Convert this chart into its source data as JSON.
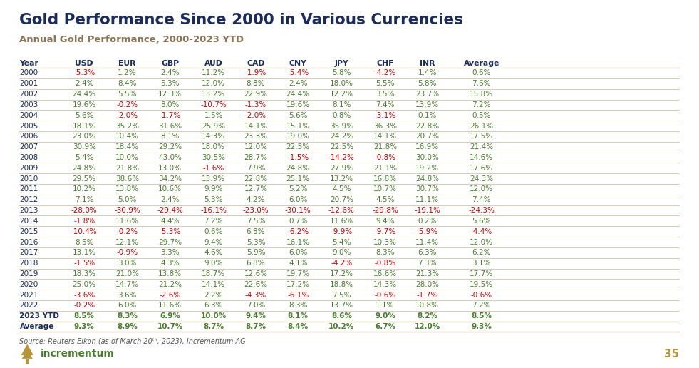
{
  "title": "Gold Performance Since 2000 in Various Currencies",
  "subtitle": "Annual Gold Performance, 2000-2023 YTD",
  "source": "Source: Reuters Eikon (as of March 20ᵗʰ, 2023), Incrementum AG",
  "page_number": "35",
  "columns": [
    "Year",
    "USD",
    "EUR",
    "GBP",
    "AUD",
    "CAD",
    "CNY",
    "JPY",
    "CHF",
    "INR",
    "Average"
  ],
  "rows": [
    [
      "2000",
      "-5.3%",
      "1.2%",
      "2.4%",
      "11.2%",
      "-1.9%",
      "-5.4%",
      "5.8%",
      "-4.2%",
      "1.4%",
      "0.6%"
    ],
    [
      "2001",
      "2.4%",
      "8.4%",
      "5.3%",
      "12.0%",
      "8.8%",
      "2.4%",
      "18.0%",
      "5.5%",
      "5.8%",
      "7.6%"
    ],
    [
      "2002",
      "24.4%",
      "5.5%",
      "12.3%",
      "13.2%",
      "22.9%",
      "24.4%",
      "12.2%",
      "3.5%",
      "23.7%",
      "15.8%"
    ],
    [
      "2003",
      "19.6%",
      "-0.2%",
      "8.0%",
      "-10.7%",
      "-1.3%",
      "19.6%",
      "8.1%",
      "7.4%",
      "13.9%",
      "7.2%"
    ],
    [
      "2004",
      "5.6%",
      "-2.0%",
      "-1.7%",
      "1.5%",
      "-2.0%",
      "5.6%",
      "0.8%",
      "-3.1%",
      "0.1%",
      "0.5%"
    ],
    [
      "2005",
      "18.1%",
      "35.2%",
      "31.6%",
      "25.9%",
      "14.1%",
      "15.1%",
      "35.9%",
      "36.3%",
      "22.8%",
      "26.1%"
    ],
    [
      "2006",
      "23.0%",
      "10.4%",
      "8.1%",
      "14.3%",
      "23.3%",
      "19.0%",
      "24.2%",
      "14.1%",
      "20.7%",
      "17.5%"
    ],
    [
      "2007",
      "30.9%",
      "18.4%",
      "29.2%",
      "18.0%",
      "12.0%",
      "22.5%",
      "22.5%",
      "21.8%",
      "16.9%",
      "21.4%"
    ],
    [
      "2008",
      "5.4%",
      "10.0%",
      "43.0%",
      "30.5%",
      "28.7%",
      "-1.5%",
      "-14.2%",
      "-0.8%",
      "30.0%",
      "14.6%"
    ],
    [
      "2009",
      "24.8%",
      "21.8%",
      "13.0%",
      "-1.6%",
      "7.9%",
      "24.8%",
      "27.9%",
      "21.1%",
      "19.2%",
      "17.6%"
    ],
    [
      "2010",
      "29.5%",
      "38.6%",
      "34.2%",
      "13.9%",
      "22.8%",
      "25.1%",
      "13.2%",
      "16.8%",
      "24.8%",
      "24.3%"
    ],
    [
      "2011",
      "10.2%",
      "13.8%",
      "10.6%",
      "9.9%",
      "12.7%",
      "5.2%",
      "4.5%",
      "10.7%",
      "30.7%",
      "12.0%"
    ],
    [
      "2012",
      "7.1%",
      "5.0%",
      "2.4%",
      "5.3%",
      "4.2%",
      "6.0%",
      "20.7%",
      "4.5%",
      "11.1%",
      "7.4%"
    ],
    [
      "2013",
      "-28.0%",
      "-30.9%",
      "-29.4%",
      "-16.1%",
      "-23.0%",
      "-30.1%",
      "-12.6%",
      "-29.8%",
      "-19.1%",
      "-24.3%"
    ],
    [
      "2014",
      "-1.8%",
      "11.6%",
      "4.4%",
      "7.2%",
      "7.5%",
      "0.7%",
      "11.6%",
      "9.4%",
      "0.2%",
      "5.6%"
    ],
    [
      "2015",
      "-10.4%",
      "-0.2%",
      "-5.3%",
      "0.6%",
      "6.8%",
      "-6.2%",
      "-9.9%",
      "-9.7%",
      "-5.9%",
      "-4.4%"
    ],
    [
      "2016",
      "8.5%",
      "12.1%",
      "29.7%",
      "9.4%",
      "5.3%",
      "16.1%",
      "5.4%",
      "10.3%",
      "11.4%",
      "12.0%"
    ],
    [
      "2017",
      "13.1%",
      "-0.9%",
      "3.3%",
      "4.6%",
      "5.9%",
      "6.0%",
      "9.0%",
      "8.3%",
      "6.3%",
      "6.2%"
    ],
    [
      "2018",
      "-1.5%",
      "3.0%",
      "4.3%",
      "9.0%",
      "6.8%",
      "4.1%",
      "-4.2%",
      "-0.8%",
      "7.3%",
      "3.1%"
    ],
    [
      "2019",
      "18.3%",
      "21.0%",
      "13.8%",
      "18.7%",
      "12.6%",
      "19.7%",
      "17.2%",
      "16.6%",
      "21.3%",
      "17.7%"
    ],
    [
      "2020",
      "25.0%",
      "14.7%",
      "21.2%",
      "14.1%",
      "22.6%",
      "17.2%",
      "18.8%",
      "14.3%",
      "28.0%",
      "19.5%"
    ],
    [
      "2021",
      "-3.6%",
      "3.6%",
      "-2.6%",
      "2.2%",
      "-4.3%",
      "-6.1%",
      "7.5%",
      "-0.6%",
      "-1.7%",
      "-0.6%"
    ],
    [
      "2022",
      "-0.2%",
      "6.0%",
      "11.6%",
      "6.3%",
      "7.0%",
      "8.3%",
      "13.7%",
      "1.1%",
      "10.8%",
      "7.2%"
    ],
    [
      "2023 YTD",
      "8.5%",
      "8.3%",
      "6.9%",
      "10.0%",
      "9.4%",
      "8.1%",
      "8.6%",
      "9.0%",
      "8.2%",
      "8.5%"
    ],
    [
      "Average",
      "9.3%",
      "8.9%",
      "10.7%",
      "8.7%",
      "8.7%",
      "8.4%",
      "10.2%",
      "6.7%",
      "12.0%",
      "9.3%"
    ]
  ],
  "bg_color": "#ffffff",
  "header_text_color": "#1a2c5b",
  "title_color": "#1a2c5b",
  "subtitle_color": "#8b7355",
  "positive_color": "#4a7c2f",
  "negative_color": "#cc0000",
  "divider_color": "#c8b89a",
  "igwt_badge_color": "#b5973a",
  "footer_color": "#4a7c2f",
  "source_color": "#5a5a5a"
}
